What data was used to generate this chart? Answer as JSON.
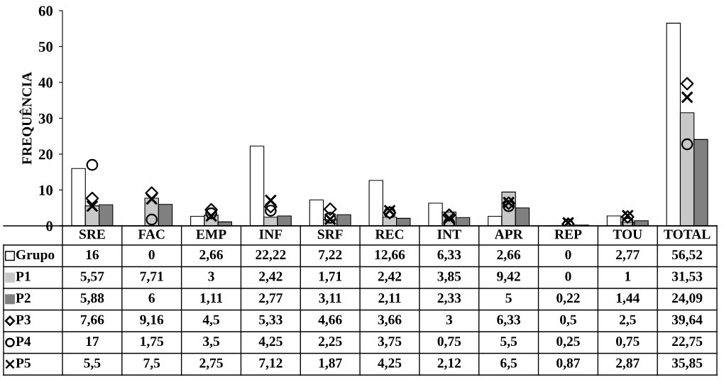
{
  "chart_data": {
    "type": "bar",
    "ylabel": "FREQUÊNCIA",
    "categories": [
      "SRE",
      "FAC",
      "EMP",
      "INF",
      "SRF",
      "REC",
      "INT",
      "APR",
      "REP",
      "TOU",
      "TOTAL"
    ],
    "series": [
      {
        "name": "Grupo",
        "color": "#ffffff",
        "values": [
          16,
          0,
          2.66,
          22.22,
          7.22,
          12.66,
          6.33,
          2.66,
          0,
          2.77,
          56.52
        ],
        "value_labels": [
          "16",
          "0",
          "2,66",
          "22,22",
          "7,22",
          "12,66",
          "6,33",
          "2,66",
          "0",
          "2,77",
          "56,52"
        ]
      },
      {
        "name": "P1",
        "color": "#c8c8c8",
        "values": [
          5.57,
          7.71,
          3,
          2.42,
          1.71,
          2.42,
          3.85,
          9.42,
          0,
          1,
          31.53
        ],
        "value_labels": [
          "5,57",
          "7,71",
          "3",
          "2,42",
          "1,71",
          "2,42",
          "3,85",
          "9,42",
          "0",
          "1",
          "31,53"
        ]
      },
      {
        "name": "P2",
        "color": "#808080",
        "values": [
          5.88,
          6,
          1.11,
          2.77,
          3.11,
          2.11,
          2.33,
          5,
          0.22,
          1.44,
          24.09
        ],
        "value_labels": [
          "5,88",
          "6",
          "1,11",
          "2,77",
          "3,11",
          "2,11",
          "2,33",
          "5",
          "0,22",
          "1,44",
          "24,09"
        ]
      },
      {
        "name": "P3",
        "type": "scatter",
        "marker": "diamond",
        "color": "#000000",
        "x": [
          "SRE",
          "FAC",
          "EMP",
          "INF",
          "SRF",
          "REC",
          "INT",
          "APR",
          "REP",
          "TOU",
          "TOTAL"
        ],
        "values": [
          7.66,
          9.16,
          4.5,
          5.33,
          4.66,
          3.66,
          3,
          6.33,
          0.5,
          2.5,
          39.64
        ],
        "value_labels": [
          "7,66",
          "9,16",
          "4,5",
          "5,33",
          "4,66",
          "3,66",
          "3",
          "6,33",
          "0,5",
          "2,5",
          "39,64"
        ]
      },
      {
        "name": "P4",
        "type": "scatter",
        "marker": "circle",
        "color": "#000000",
        "x": [
          "SRE",
          "FAC",
          "EMP",
          "INF",
          "SRF",
          "REC",
          "INT",
          "APR",
          "REP",
          "TOU",
          "TOTAL"
        ],
        "values": [
          17,
          1.75,
          3.5,
          4.25,
          2.25,
          3.75,
          0.75,
          5.5,
          0.25,
          0.75,
          22.75
        ],
        "value_labels": [
          "17",
          "1,75",
          "3,5",
          "4,25",
          "2,25",
          "3,75",
          "0,75",
          "5,5",
          "0,25",
          "0,75",
          "22,75"
        ]
      },
      {
        "name": "P5",
        "type": "scatter",
        "marker": "cross",
        "color": "#000000",
        "x": [
          "SRE",
          "FAC",
          "EMP",
          "INF",
          "SRF",
          "REC",
          "INT",
          "APR",
          "REP",
          "TOU",
          "TOTAL"
        ],
        "values": [
          5.5,
          7.5,
          2.75,
          7.12,
          1.87,
          4.25,
          2.12,
          6.5,
          0.87,
          2.87,
          35.85
        ],
        "value_labels": [
          "5,5",
          "7,5",
          "2,75",
          "7,12",
          "1,87",
          "4,25",
          "2,12",
          "6,5",
          "0,87",
          "2,87",
          "35,85"
        ]
      }
    ],
    "ylim": [
      0,
      60
    ],
    "yticks": [
      0,
      10,
      20,
      30,
      40,
      50,
      60
    ],
    "grid": false,
    "legend": "bottom"
  }
}
